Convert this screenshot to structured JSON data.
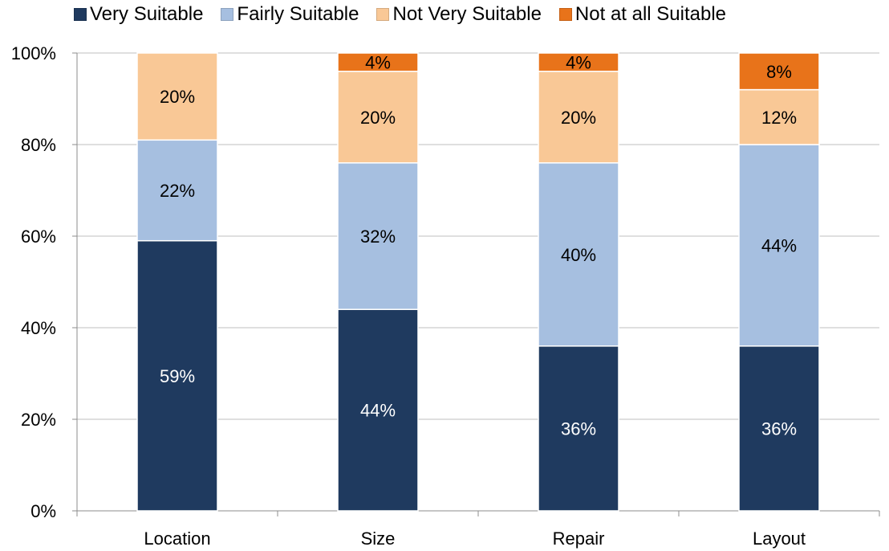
{
  "chart_data": {
    "type": "bar",
    "stacked": true,
    "title": "",
    "xlabel": "",
    "ylabel": "",
    "ylim": [
      0,
      100
    ],
    "y_ticks": [
      "0%",
      "20%",
      "40%",
      "60%",
      "80%",
      "100%"
    ],
    "y_tick_values": [
      0,
      20,
      40,
      60,
      80,
      100
    ],
    "categories": [
      "Location",
      "Size",
      "Repair",
      "Layout"
    ],
    "legend_position": "top",
    "grid": true,
    "series": [
      {
        "name": "Very Suitable",
        "color": "#1f3a5f",
        "label_color": "#ffffff",
        "values": [
          59,
          44,
          36,
          36
        ],
        "labels": [
          "59%",
          "44%",
          "36%",
          "36%"
        ]
      },
      {
        "name": "Fairly Suitable",
        "color": "#a6bfe0",
        "label_color": "#000000",
        "values": [
          22,
          32,
          40,
          44
        ],
        "labels": [
          "22%",
          "32%",
          "40%",
          "44%"
        ]
      },
      {
        "name": "Not Very Suitable",
        "color": "#f9c896",
        "label_color": "#000000",
        "values": [
          20,
          20,
          20,
          12
        ],
        "labels": [
          "20%",
          "20%",
          "20%",
          "12%"
        ]
      },
      {
        "name": "Not at all Suitable",
        "color": "#e8731a",
        "label_color": "#000000",
        "values": [
          0,
          4,
          4,
          8
        ],
        "labels": [
          "",
          "4%",
          "4%",
          "8%"
        ]
      }
    ]
  }
}
